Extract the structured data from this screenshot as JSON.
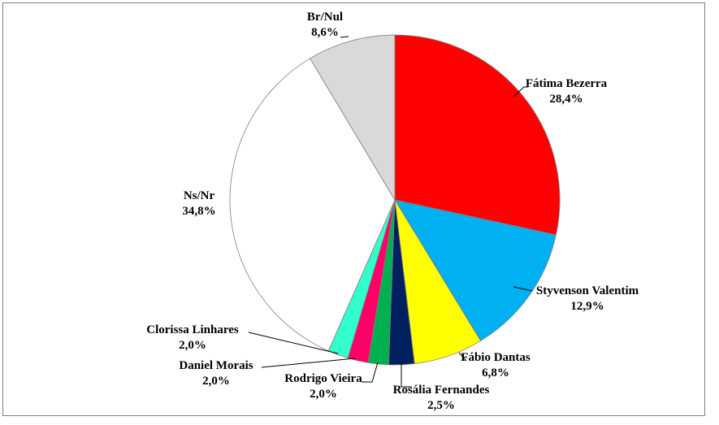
{
  "chart_data": {
    "type": "pie",
    "title": "",
    "start_angle_deg": 0,
    "direction": "clockwise",
    "slices": [
      {
        "label": "Fátima Bezerra",
        "value": 28.4,
        "value_label": "28,4%",
        "color": "#ff0000"
      },
      {
        "label": "Styvenson Valentim",
        "value": 12.9,
        "value_label": "12,9%",
        "color": "#00b0f0"
      },
      {
        "label": "Fábio Dantas",
        "value": 6.8,
        "value_label": "6,8%",
        "color": "#ffff00"
      },
      {
        "label": "Rosália Fernandes",
        "value": 2.5,
        "value_label": "2,5%",
        "color": "#002060"
      },
      {
        "label": "Rodrigo Vieira",
        "value": 2.0,
        "value_label": "2,0%",
        "color": "#00b050"
      },
      {
        "label": "Daniel Morais",
        "value": 2.0,
        "value_label": "2,0%",
        "color": "#ff0066"
      },
      {
        "label": "Clorissa Linhares",
        "value": 2.0,
        "value_label": "2,0%",
        "color": "#33ffcc"
      },
      {
        "label": "Ns/Nr",
        "value": 34.8,
        "value_label": "34,8%",
        "color": "#ffffff"
      },
      {
        "label": "Br/Nul",
        "value": 8.6,
        "value_label": "8,6%",
        "color": "#d9d9d9"
      }
    ]
  }
}
